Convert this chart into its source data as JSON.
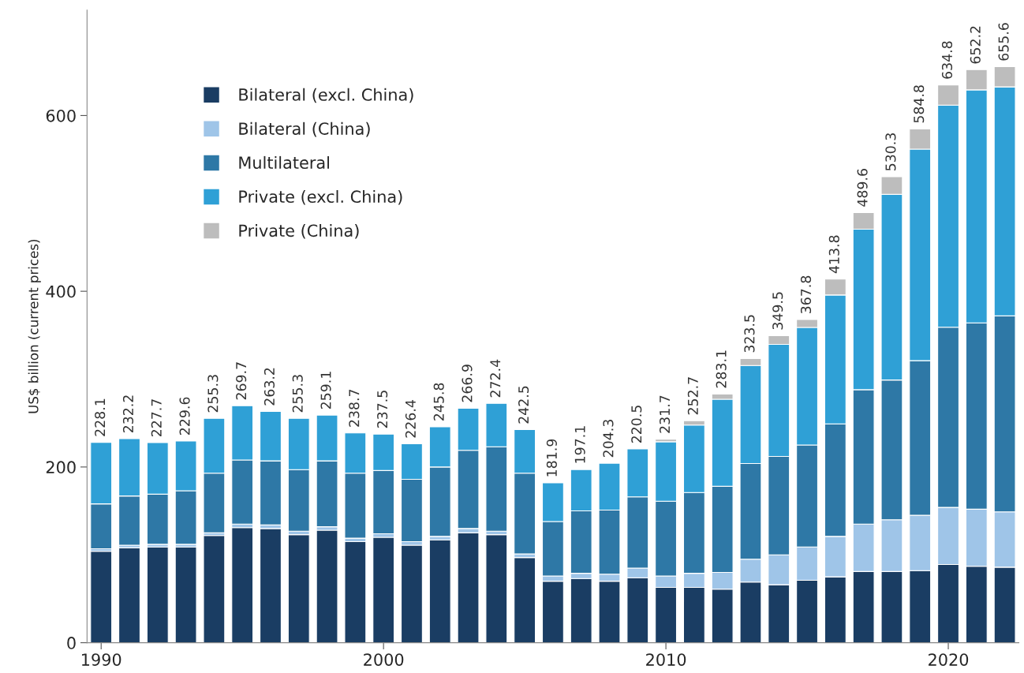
{
  "chart_data": {
    "type": "bar",
    "stacked": true,
    "ylabel": "US$ billion (current prices)",
    "x": [
      1990,
      1991,
      1992,
      1993,
      1994,
      1995,
      1996,
      1997,
      1998,
      1999,
      2000,
      2001,
      2002,
      2003,
      2004,
      2005,
      2006,
      2007,
      2008,
      2009,
      2010,
      2011,
      2012,
      2013,
      2014,
      2015,
      2016,
      2017,
      2018,
      2019,
      2020,
      2021,
      2022
    ],
    "xlim": [
      1989.5,
      2022.5
    ],
    "xticks": [
      1990,
      2000,
      2010,
      2020
    ],
    "ylim": [
      0,
      720
    ],
    "yticks": [
      0,
      200,
      400,
      600
    ],
    "grid": false,
    "legend": "top left",
    "series": [
      {
        "name": "Bilateral (excl. China)",
        "color": "#1a3d63",
        "values": [
          104,
          108,
          109,
          109,
          122,
          131,
          130,
          123,
          128,
          115,
          120,
          111,
          117,
          125,
          123,
          97,
          70,
          73,
          70,
          74,
          63,
          63,
          61,
          69,
          66,
          71,
          75,
          81,
          81,
          82,
          89,
          87,
          86
        ]
      },
      {
        "name": "Bilateral (China)",
        "color": "#9fc5e8",
        "values": [
          3,
          3,
          3,
          3,
          3,
          4,
          4,
          4,
          4,
          4,
          4,
          4,
          4,
          5,
          4,
          4,
          6,
          6,
          8,
          11,
          13,
          16,
          19,
          26,
          34,
          38,
          46,
          54,
          59,
          63,
          65,
          65,
          63
        ]
      },
      {
        "name": "Multilateral",
        "color": "#2e78a6",
        "values": [
          51,
          56,
          57,
          61,
          68,
          73,
          73,
          70,
          75,
          74,
          72,
          71,
          79,
          89,
          96,
          92,
          62,
          71,
          73,
          81,
          85,
          92,
          98,
          109,
          112,
          116,
          128,
          153,
          159,
          176,
          205,
          212,
          223
        ]
      },
      {
        "name": "Private (excl. China)",
        "color": "#2fa0d6",
        "values": [
          70.1,
          65.2,
          58.7,
          56.6,
          62.3,
          61.7,
          56.2,
          58.3,
          52.1,
          45.7,
          41.5,
          40.4,
          45.8,
          47.9,
          49.4,
          49.5,
          43.9,
          47.1,
          53.3,
          54.5,
          67.7,
          76.7,
          99.1,
          111.5,
          127.5,
          133.8,
          146.8,
          182.6,
          211.3,
          240.8,
          252.8,
          265.2,
          260.6
        ]
      },
      {
        "name": "Private (China)",
        "color": "#bdbdbd",
        "values": [
          null,
          null,
          null,
          null,
          null,
          null,
          null,
          null,
          null,
          null,
          null,
          null,
          null,
          null,
          null,
          null,
          null,
          null,
          null,
          null,
          3,
          5,
          6,
          8,
          10,
          9,
          18,
          19,
          20,
          23,
          23,
          23,
          23
        ]
      }
    ],
    "totals": [
      "228.1",
      "232.2",
      "227.7",
      "229.6",
      "255.3",
      "269.7",
      "263.2",
      "255.3",
      "259.1",
      "238.7",
      "237.5",
      "226.4",
      "245.8",
      "266.9",
      "272.4",
      "242.5",
      "181.9",
      "197.1",
      "204.3",
      "220.5",
      "231.7",
      "252.7",
      "283.1",
      "323.5",
      "349.5",
      "367.8",
      "413.8",
      "489.6",
      "530.3",
      "584.8",
      "634.8",
      "652.2",
      "655.6"
    ]
  }
}
